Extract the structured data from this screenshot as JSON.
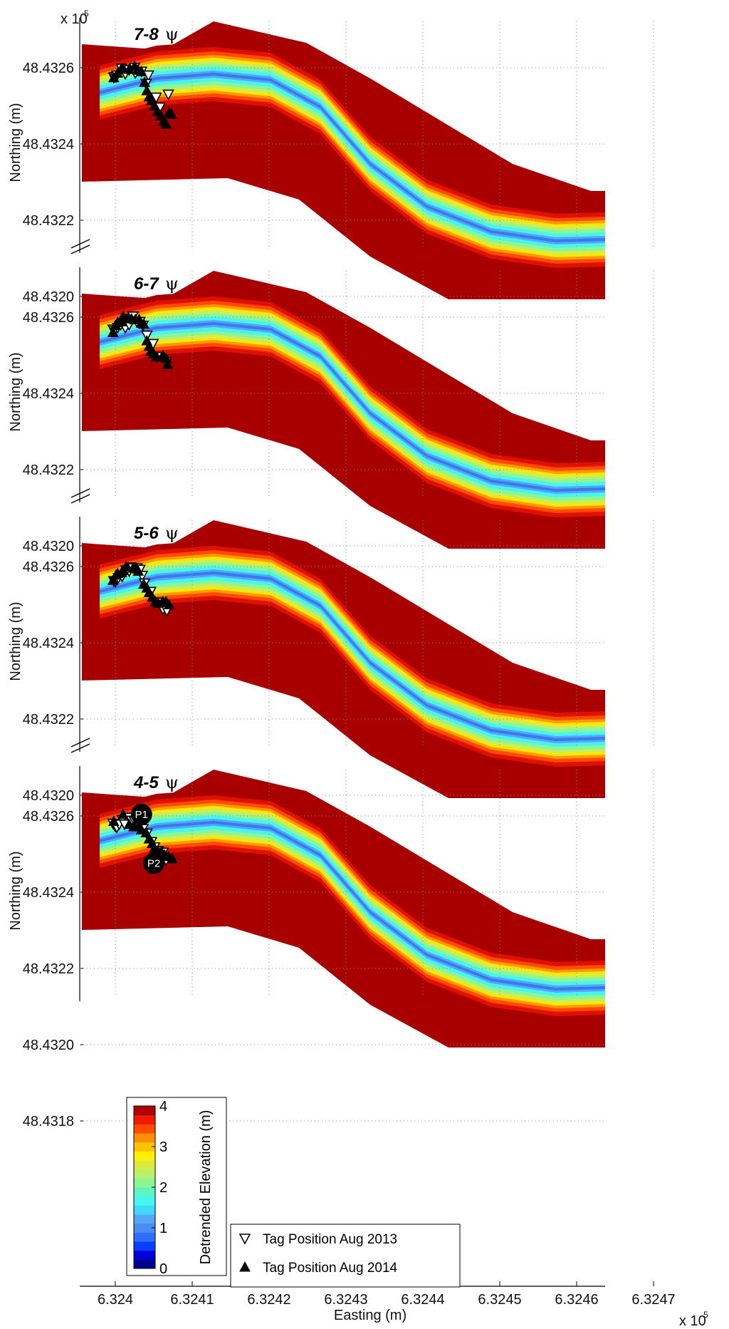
{
  "chart_data": {
    "type": "scatter",
    "xlabel": "Easting (m)",
    "ylabel": "Northing (m)",
    "x_exponent_label": "x 10",
    "x_exponent": "5",
    "y_exponent_label": "x 10",
    "y_exponent": "5",
    "x_ticks": [
      "6.324",
      "6.3241",
      "6.3242",
      "6.3243",
      "6.3244",
      "6.3245",
      "6.3246",
      "6.3247"
    ],
    "colorbar": {
      "label": "Detrended Elevation (m)",
      "ticks": [
        "0",
        "1",
        "2",
        "3",
        "4"
      ],
      "range": [
        0,
        4
      ],
      "colors": [
        "#00008f",
        "#0000d8",
        "#0a3cff",
        "#2f6fff",
        "#4a8cf2",
        "#56a6f7",
        "#3fd9ff",
        "#44f5f0",
        "#5cf5c2",
        "#8ef593",
        "#b8f06a",
        "#dcea3e",
        "#ffef00",
        "#ffc400",
        "#ff8f00",
        "#ff4a00",
        "#f01a00",
        "#b20000"
      ]
    },
    "legend": {
      "placement": "bottom-right",
      "entries": [
        {
          "label": "Tag Position Aug 2013",
          "marker": "open-triangle-down"
        },
        {
          "label": "Tag Position Aug 2014",
          "marker": "filled-triangle-up"
        }
      ]
    },
    "panels": [
      {
        "title": "7-8",
        "title_symbol": "ψ",
        "y_ticks": [
          "48.4326",
          "48.4324",
          "48.4322",
          "48.4320"
        ],
        "tag_2013": [
          [
            632398,
            4843247
          ],
          [
            632399,
            4843248
          ],
          [
            632401,
            4843248
          ],
          [
            632402,
            4843250
          ],
          [
            632413,
            4843252
          ],
          [
            632408,
            4843259
          ],
          [
            632418,
            4843257
          ],
          [
            632425,
            4843260
          ],
          [
            632426,
            4843253
          ],
          [
            632434,
            4843255
          ],
          [
            632443,
            4843250
          ],
          [
            632440,
            4843239
          ],
          [
            632453,
            4843221
          ],
          [
            632458,
            4843208
          ],
          [
            632469,
            4843225
          ]
        ],
        "tag_2014": [
          [
            632398,
            4843247
          ],
          [
            632403,
            4843253
          ],
          [
            632408,
            4843259
          ],
          [
            632410,
            4843259
          ],
          [
            632418,
            4843258
          ],
          [
            632425,
            4843262
          ],
          [
            632429,
            4843257
          ],
          [
            632434,
            4843255
          ],
          [
            632438,
            4843241
          ],
          [
            632441,
            4843230
          ],
          [
            632444,
            4843222
          ],
          [
            632447,
            4843217
          ],
          [
            632451,
            4843210
          ],
          [
            632455,
            4843203
          ],
          [
            632459,
            4843197
          ],
          [
            632463,
            4843190
          ],
          [
            632466,
            4843186
          ],
          [
            632470,
            4843201
          ],
          [
            632473,
            4843199
          ]
        ]
      },
      {
        "title": "6-7",
        "title_symbol": "ψ",
        "y_ticks": [
          "48.4326",
          "48.4324",
          "48.4322",
          "48.4320"
        ],
        "tag_2013": [
          [
            632397,
            4843244
          ],
          [
            632399,
            4843242
          ],
          [
            632403,
            4843246
          ],
          [
            632407,
            4843250
          ],
          [
            632413,
            4843246
          ],
          [
            632418,
            4843250
          ],
          [
            632419,
            4843258
          ],
          [
            632423,
            4843261
          ],
          [
            632428,
            4843254
          ],
          [
            632432,
            4843254
          ],
          [
            632436,
            4843249
          ],
          [
            632441,
            4843236
          ],
          [
            632449,
            4843225
          ],
          [
            632454,
            4843208
          ],
          [
            632466,
            4843201
          ]
        ],
        "tag_2014": [
          [
            632397,
            4843240
          ],
          [
            632400,
            4843249
          ],
          [
            632403,
            4843253
          ],
          [
            632408,
            4843254
          ],
          [
            632410,
            4843261
          ],
          [
            632416,
            4843258
          ],
          [
            632421,
            4843258
          ],
          [
            632426,
            4843257
          ],
          [
            632431,
            4843257
          ],
          [
            632434,
            4843252
          ],
          [
            632437,
            4843251
          ],
          [
            632441,
            4843229
          ],
          [
            632444,
            4843222
          ],
          [
            632446,
            4843215
          ],
          [
            632450,
            4843212
          ],
          [
            632454,
            4843208
          ],
          [
            632462,
            4843210
          ],
          [
            632466,
            4843206
          ],
          [
            632468,
            4843198
          ]
        ]
      },
      {
        "title": "5-6",
        "title_symbol": "ψ",
        "y_ticks": [
          "48.4326",
          "48.4324",
          "48.4322",
          "48.4320"
        ],
        "tag_2013": [
          [
            632398,
            4843241
          ],
          [
            632400,
            4843240
          ],
          [
            632404,
            4843245
          ],
          [
            632409,
            4843247
          ],
          [
            632414,
            4843255
          ],
          [
            632418,
            4843254
          ],
          [
            632420,
            4843259
          ],
          [
            632423,
            4843258
          ],
          [
            632428,
            4843258
          ],
          [
            632432,
            4843256
          ],
          [
            632435,
            4843248
          ],
          [
            632438,
            4843238
          ],
          [
            632446,
            4843227
          ],
          [
            632454,
            4843213
          ],
          [
            632462,
            4843204
          ],
          [
            632467,
            4843202
          ]
        ],
        "tag_2014": [
          [
            632397,
            4843242
          ],
          [
            632401,
            4843249
          ],
          [
            632403,
            4843251
          ],
          [
            632408,
            4843252
          ],
          [
            632410,
            4843255
          ],
          [
            632414,
            4843260
          ],
          [
            632423,
            4843258
          ],
          [
            632427,
            4843258
          ],
          [
            632430,
            4843254
          ],
          [
            632437,
            4843237
          ],
          [
            632441,
            4843232
          ],
          [
            632444,
            4843226
          ],
          [
            632448,
            4843220
          ],
          [
            632452,
            4843214
          ],
          [
            632456,
            4843212
          ],
          [
            632462,
            4843214
          ],
          [
            632466,
            4843214
          ],
          [
            632470,
            4843210
          ]
        ]
      },
      {
        "title": "4-5",
        "title_symbol": "ψ",
        "y_ticks": [
          "48.4326",
          "48.4324",
          "48.4322",
          "48.4320",
          "48.4318"
        ],
        "tag_2013": [
          [
            632397,
            4843250
          ],
          [
            632400,
            4843246
          ],
          [
            632402,
            4843245
          ],
          [
            632405,
            4843249
          ],
          [
            632409,
            4843255
          ],
          [
            632412,
            4843249
          ],
          [
            632418,
            4843258
          ],
          [
            632421,
            4843254
          ],
          [
            632425,
            4843253
          ],
          [
            632430,
            4843250
          ],
          [
            632432,
            4843245
          ],
          [
            632436,
            4843243
          ],
          [
            632441,
            4843237
          ],
          [
            632447,
            4843226
          ],
          [
            632451,
            4843219
          ],
          [
            632456,
            4843214
          ],
          [
            632462,
            4843212
          ],
          [
            632466,
            4843202
          ]
        ],
        "tag_2014": [
          [
            632398,
            4843253
          ],
          [
            632410,
            4843262
          ],
          [
            632418,
            4843249
          ],
          [
            632424,
            4843246
          ],
          [
            632430,
            4843246
          ],
          [
            632434,
            4843242
          ],
          [
            632440,
            4843238
          ],
          [
            632444,
            4843230
          ],
          [
            632448,
            4843224
          ],
          [
            632451,
            4843218
          ],
          [
            632455,
            4843214
          ],
          [
            632460,
            4843213
          ],
          [
            632464,
            4843209
          ],
          [
            632469,
            4843207
          ],
          [
            632474,
            4843204
          ]
        ],
        "annotations": [
          {
            "label": "P1",
            "x": 632434,
            "y": 4843262
          },
          {
            "label": "P2",
            "x": 632450,
            "y": 4843198
          }
        ]
      }
    ]
  }
}
